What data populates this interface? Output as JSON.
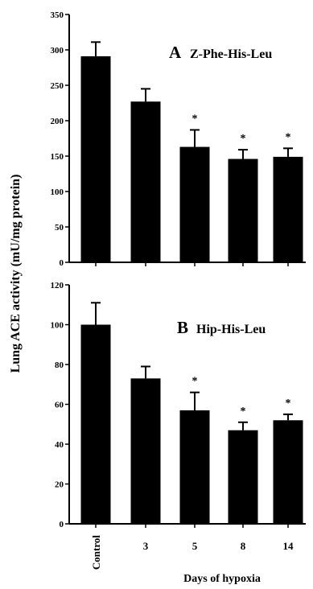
{
  "chart_data": [
    {
      "type": "bar",
      "panel_label": "A",
      "title": "Z-Phe-His-Leu",
      "categories": [
        "Control",
        "3",
        "5",
        "8",
        "14"
      ],
      "values": [
        291,
        227,
        163,
        146,
        149
      ],
      "errors": [
        20,
        18,
        24,
        13,
        12
      ],
      "significant": [
        false,
        false,
        true,
        true,
        true
      ],
      "significance_marker": "*",
      "ylim": [
        0,
        350
      ],
      "yticks": [
        0,
        50,
        100,
        150,
        200,
        250,
        300,
        350
      ],
      "color": "#000000",
      "grid": false
    },
    {
      "type": "bar",
      "panel_label": "B",
      "title": "Hip-His-Leu",
      "categories": [
        "Control",
        "3",
        "5",
        "8",
        "14"
      ],
      "values": [
        100,
        73,
        57,
        47,
        52
      ],
      "errors": [
        11,
        6,
        9,
        4,
        3
      ],
      "significant": [
        false,
        false,
        true,
        true,
        true
      ],
      "significance_marker": "*",
      "ylim": [
        0,
        120
      ],
      "yticks": [
        0,
        20,
        40,
        60,
        80,
        100,
        120
      ],
      "color": "#000000",
      "grid": false
    }
  ],
  "ylabel": "Lung ACE activity (mU/mg protein)",
  "xlabel": "Days of hypoxia"
}
